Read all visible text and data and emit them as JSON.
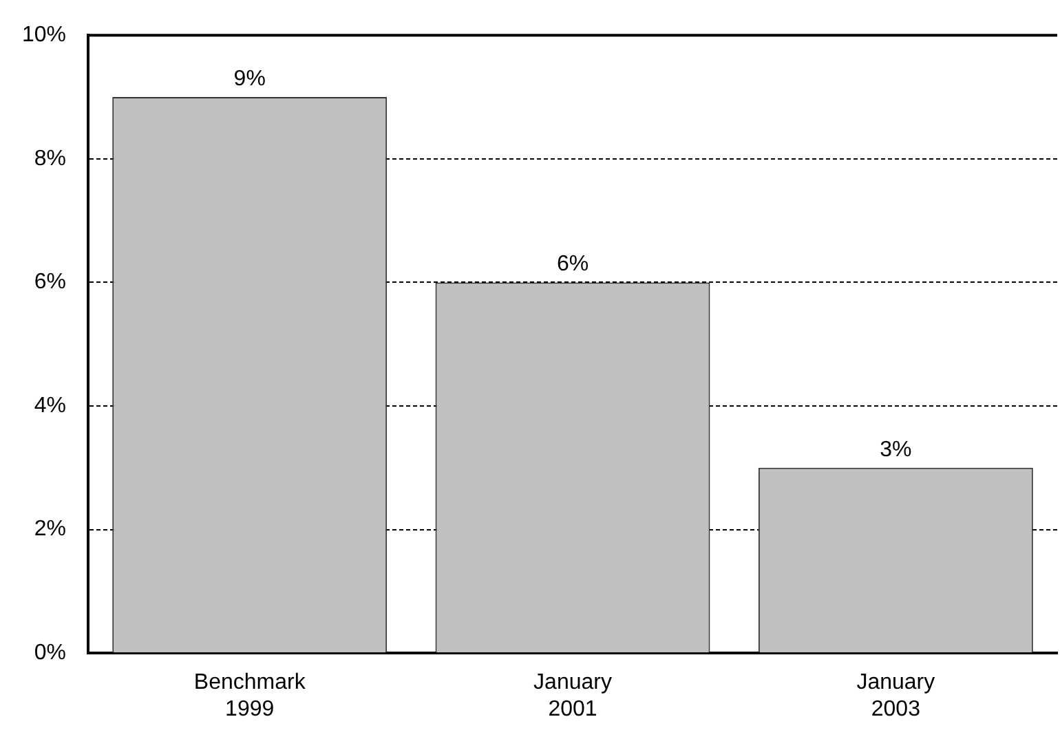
{
  "chart_data": {
    "type": "bar",
    "categories": [
      "Benchmark 1999",
      "January 2001",
      "January 2003"
    ],
    "values": [
      9,
      6,
      3
    ],
    "color": "#c0c0c0",
    "value_labels": [
      "9%",
      "6%",
      "3%"
    ],
    "ylim": [
      0,
      10
    ],
    "yticks": [
      {
        "value": 0,
        "label": "0%"
      },
      {
        "value": 2,
        "label": "2%"
      },
      {
        "value": 4,
        "label": "4%"
      },
      {
        "value": 6,
        "label": "6%"
      },
      {
        "value": 8,
        "label": "8%"
      },
      {
        "value": 10,
        "label": "10%"
      }
    ],
    "grid": "y",
    "legend": false
  }
}
